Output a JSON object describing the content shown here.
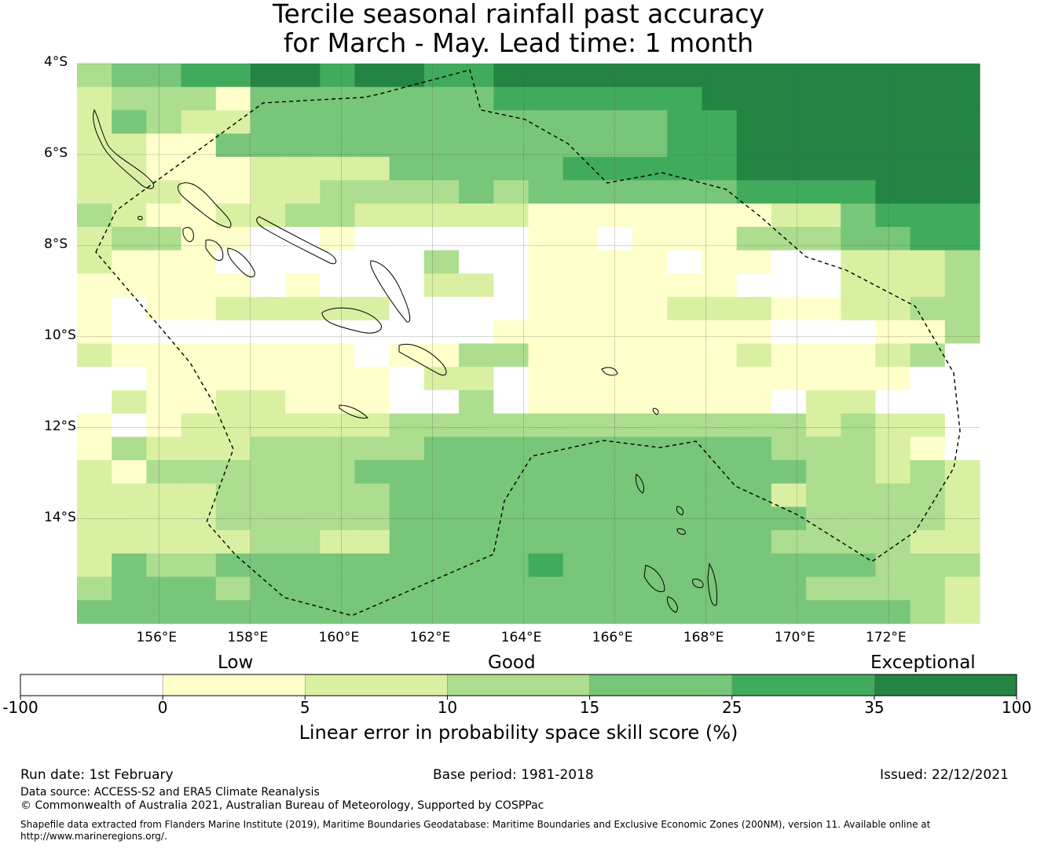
{
  "title": {
    "line1": "Tercile seasonal rainfall past accuracy",
    "line2": "for March - May. Lead time: 1 month"
  },
  "map": {
    "lon_range": [
      154.2,
      174.0
    ],
    "lat_range": [
      -16.3,
      -4.0
    ],
    "lat_ticks": [
      {
        "value": -4,
        "label": "4°S"
      },
      {
        "value": -6,
        "label": "6°S"
      },
      {
        "value": -8,
        "label": "8°S"
      },
      {
        "value": -10,
        "label": "10°S"
      },
      {
        "value": -12,
        "label": "12°S"
      },
      {
        "value": -14,
        "label": "14°S"
      }
    ],
    "lon_ticks": [
      {
        "value": 156,
        "label": "156°E"
      },
      {
        "value": 158,
        "label": "158°E"
      },
      {
        "value": 160,
        "label": "160°E"
      },
      {
        "value": 162,
        "label": "162°E"
      },
      {
        "value": 164,
        "label": "164°E"
      },
      {
        "value": 166,
        "label": "166°E"
      },
      {
        "value": 168,
        "label": "168°E"
      },
      {
        "value": 170,
        "label": "170°E"
      },
      {
        "value": 172,
        "label": "172°E"
      }
    ],
    "grid": true,
    "eez_boundary": "dashed",
    "grid_levels_note": "",
    "rows": [
      "34455665665566666666666666",
      "23331444444455555566666666",
      "24322444444444444556666666",
      "22114444444444444556666666",
      "22111222244444555556666666",
      "22211223333434444445555666",
      "32112233222221111111224555",
      "23311001000001101113334455",
      "21110000003001111011002223",
      "11111010002201111110002223",
      "10112222200001111222112233",
      "10000000000011111111000113",
      "21111111011331111112111230",
      "00111111102201111111111100",
      "02112211100301111111022000",
      "10122222233333333333323220",
      "13222333334444444444333210",
      "21333333444444444444433232",
      "22223333344444444444233332",
      "22223333344444444444433332",
      "22222332244444444444333322",
      "24334444444445444444444333",
      "34443444444444444444433332",
      "44444444444444444444444432"
    ]
  },
  "colorbar": {
    "boundaries": [
      -100,
      0,
      5,
      10,
      15,
      25,
      35,
      100
    ],
    "tick_labels": [
      "-100",
      "0",
      "5",
      "10",
      "15",
      "25",
      "35",
      "100"
    ],
    "colors": [
      "#ffffff",
      "#ffffcc",
      "#d9f0a3",
      "#addd8e",
      "#78c679",
      "#41ab5d",
      "#238443"
    ],
    "categories": [
      "Low",
      "Good",
      "Exceptional"
    ],
    "title": "Linear error in probability space skill score (%)"
  },
  "footer": {
    "run_date": "Run date: 1st February",
    "base_period": "Base period: 1981-2018",
    "issued": "Issued: 22/12/2021",
    "data_source": "Data source: ACCESS-S2 and ERA5 Climate Reanalysis",
    "copyright": "© Commonwealth of Australia 2021, Australian Bureau of Meteorology, Supported by COSPPac",
    "shapefile_line1": "Shapefile data extracted from Flanders Marine Institute (2019), Maritime Boundaries Geodatabase: Maritime Boundaries and Exclusive Economic Zones (200NM), version 11. Available online at",
    "shapefile_line2": "http://www.marineregions.org/."
  }
}
